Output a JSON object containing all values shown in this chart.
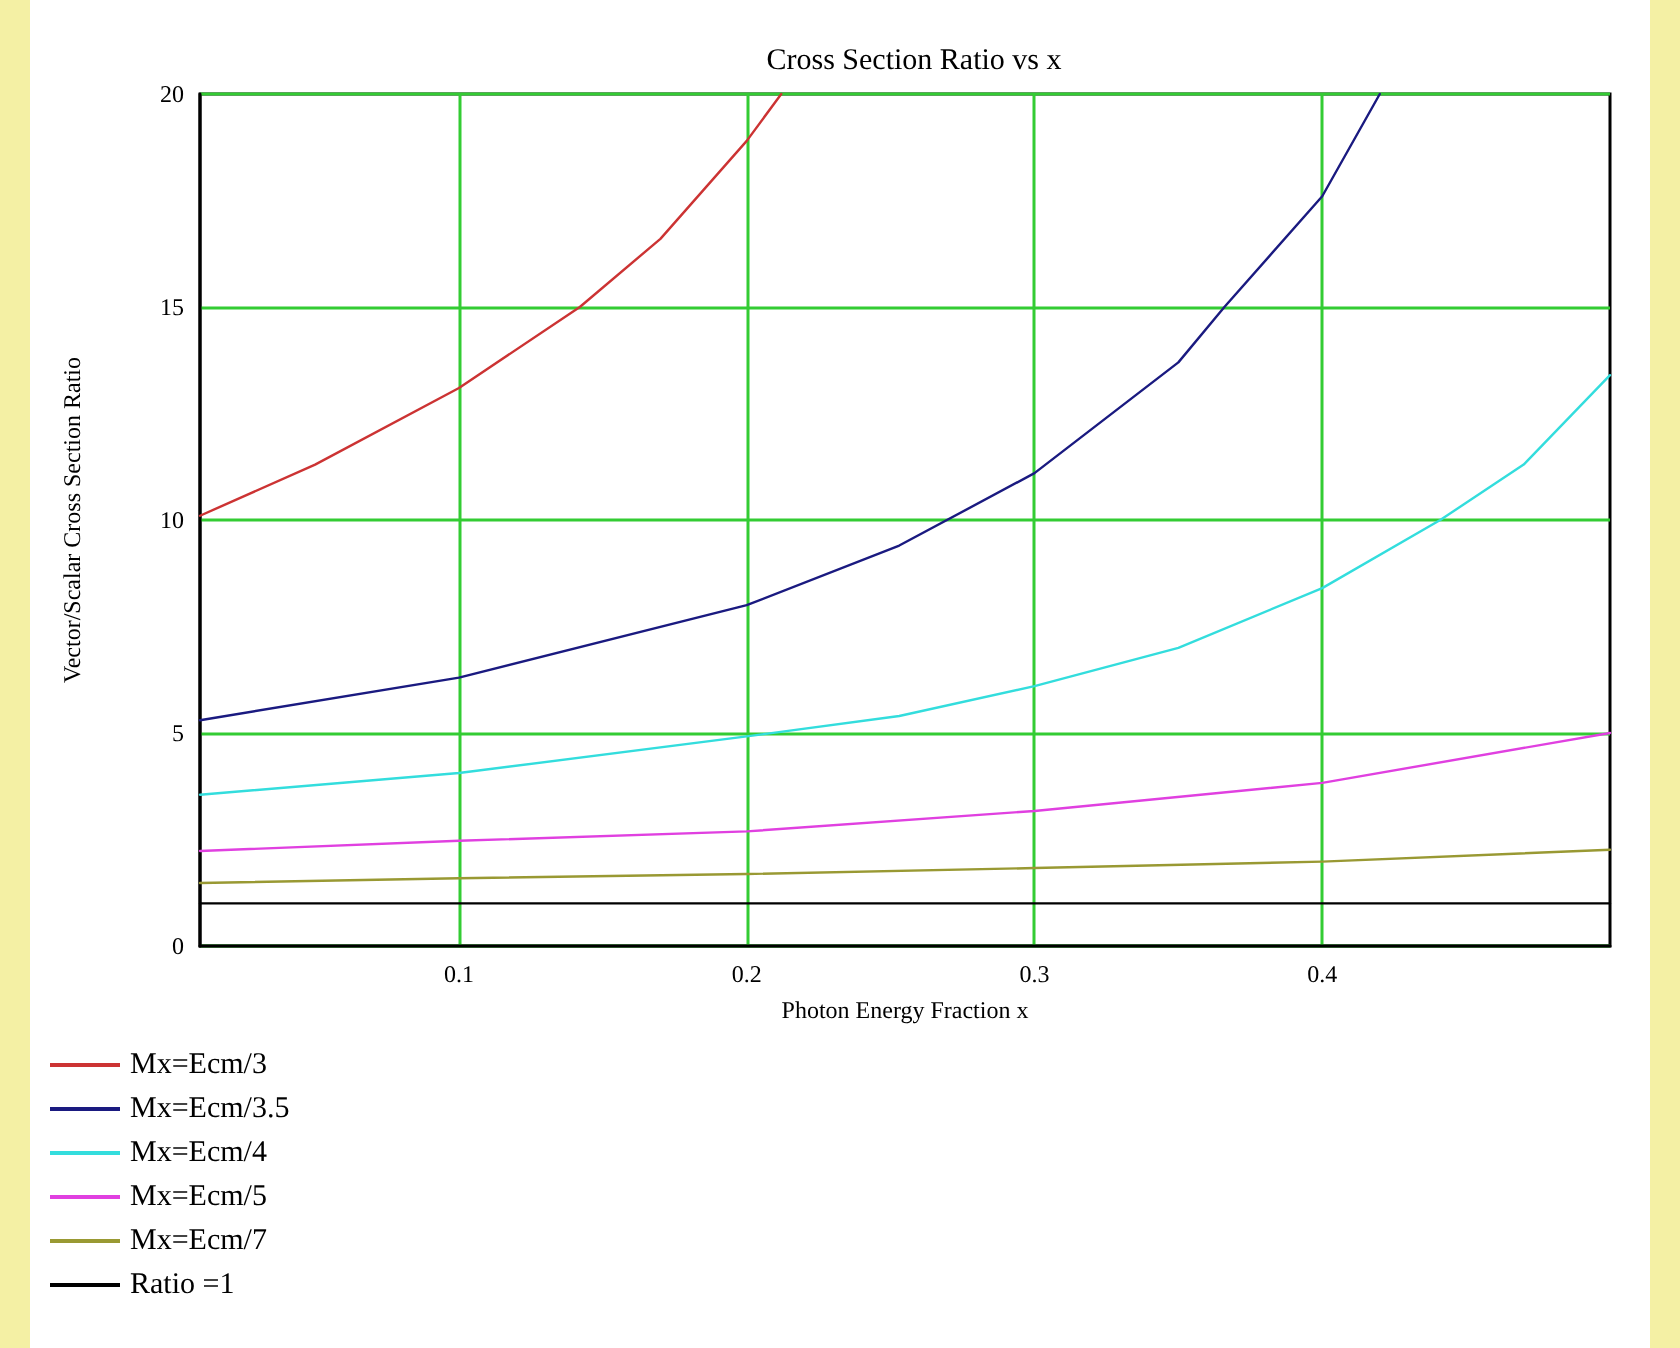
{
  "chart_data": {
    "type": "line",
    "title": "Cross Section Ratio vs x",
    "xlabel": "Photon Energy Fraction x",
    "ylabel": "Vector/Scalar Cross Section Ratio",
    "xlim": [
      0.01,
      0.5
    ],
    "xticks": [
      0.1,
      0.2,
      0.3,
      0.4
    ],
    "ylim": [
      0,
      20
    ],
    "yticks": [
      0,
      5,
      10,
      15,
      20
    ],
    "grid": true,
    "legend": "bottom left",
    "marker": "none",
    "line_style": "solid",
    "series": [
      {
        "name": "Mx=Ecm/3",
        "color": "#cc3333",
        "x": [
          0.01,
          0.05,
          0.1,
          0.142,
          0.17,
          0.2,
          0.212
        ],
        "values": [
          10.1,
          11.3,
          13.1,
          15,
          16.6,
          18.9,
          20
        ]
      },
      {
        "name": "Mx=Ecm/3.5",
        "color": "#1a1a80",
        "x": [
          0.01,
          0.1,
          0.2,
          0.253,
          0.3,
          0.35,
          0.366,
          0.4,
          0.42
        ],
        "values": [
          5.3,
          6.3,
          8.0,
          9.4,
          11.1,
          13.7,
          15,
          17.6,
          20
        ]
      },
      {
        "name": "Mx=Ecm/4",
        "color": "#33dddd",
        "x": [
          0.01,
          0.1,
          0.2,
          0.253,
          0.3,
          0.35,
          0.4,
          0.441,
          0.47,
          0.5
        ],
        "values": [
          3.55,
          4.06,
          4.92,
          5.4,
          6.1,
          7.0,
          8.4,
          10,
          11.3,
          13.4
        ]
      },
      {
        "name": "Mx=Ecm/5",
        "color": "#e040e0",
        "x": [
          0.01,
          0.1,
          0.2,
          0.3,
          0.4,
          0.5
        ],
        "values": [
          2.23,
          2.47,
          2.69,
          3.17,
          3.83,
          5.0
        ]
      },
      {
        "name": "Mx=Ecm/7",
        "color": "#999933",
        "x": [
          0.01,
          0.1,
          0.2,
          0.3,
          0.4,
          0.5
        ],
        "values": [
          1.48,
          1.59,
          1.69,
          1.83,
          1.98,
          2.26
        ]
      },
      {
        "name": "Ratio =1",
        "color": "#000000",
        "x": [
          0.01,
          0.5
        ],
        "values": [
          1,
          1
        ]
      }
    ]
  }
}
